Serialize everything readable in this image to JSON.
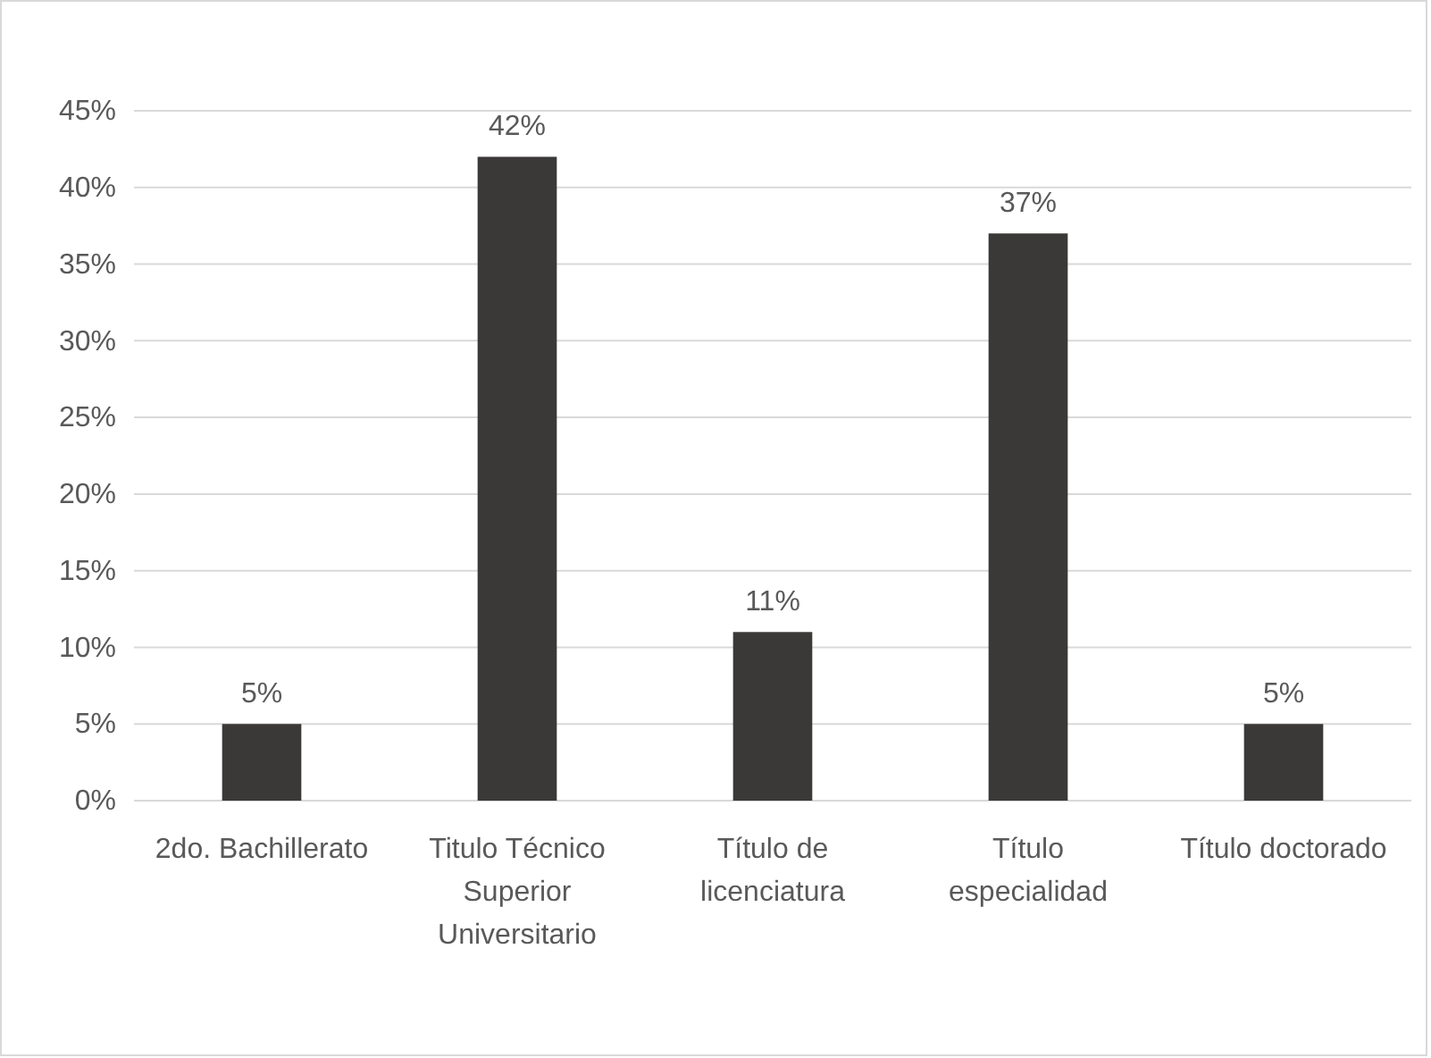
{
  "chart_data": {
    "type": "bar",
    "categories": [
      "2do. Bachillerato",
      "Titulo Técnico Superior Universitario",
      "Título de licenciatura",
      "Título especialidad",
      "Título doctorado"
    ],
    "values": [
      5,
      42,
      11,
      37,
      5
    ],
    "value_labels": [
      "5%",
      "42%",
      "11%",
      "37%",
      "5%"
    ],
    "color": "#3b3938",
    "ylim": [
      0,
      45
    ],
    "yticks": [
      {
        "value": 0,
        "label": "0%"
      },
      {
        "value": 5,
        "label": "5%"
      },
      {
        "value": 10,
        "label": "10%"
      },
      {
        "value": 15,
        "label": "15%"
      },
      {
        "value": 20,
        "label": "20%"
      },
      {
        "value": 25,
        "label": "25%"
      },
      {
        "value": 30,
        "label": "30%"
      },
      {
        "value": 35,
        "label": "35%"
      },
      {
        "value": 40,
        "label": "40%"
      },
      {
        "value": 45,
        "label": "45%"
      }
    ],
    "grid": "y"
  }
}
